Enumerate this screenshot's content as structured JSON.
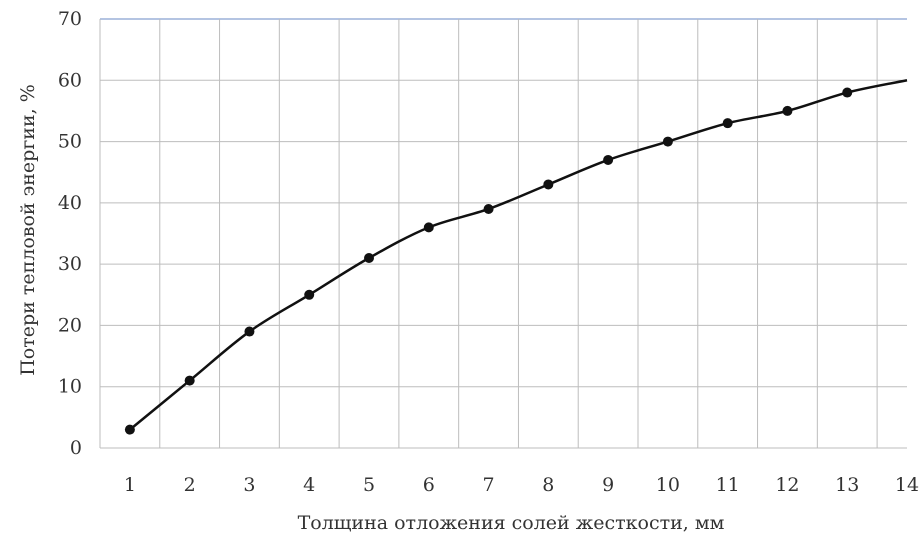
{
  "chart_data": {
    "type": "line",
    "title": "",
    "xlabel": "Толщина отложения солей жесткости, мм",
    "ylabel": "Потери тепловой энергии, %",
    "categories": [
      "1",
      "2",
      "3",
      "4",
      "5",
      "6",
      "7",
      "8",
      "9",
      "10",
      "11",
      "12",
      "13",
      "14"
    ],
    "x": [
      1,
      2,
      3,
      4,
      5,
      6,
      7,
      8,
      9,
      10,
      11,
      12,
      13,
      14
    ],
    "y": [
      3,
      11,
      19,
      25,
      31,
      36,
      39,
      43,
      47,
      50,
      53,
      55,
      58,
      60
    ],
    "yticks": [
      "0",
      "10",
      "20",
      "30",
      "40",
      "50",
      "60",
      "70"
    ],
    "ylim": [
      0,
      70
    ],
    "grid": true,
    "legend": "none",
    "colors": {
      "line": "#111111",
      "marker": "#111111",
      "grid": "#bdbdbd",
      "top_border": "#9bb0d8"
    }
  }
}
